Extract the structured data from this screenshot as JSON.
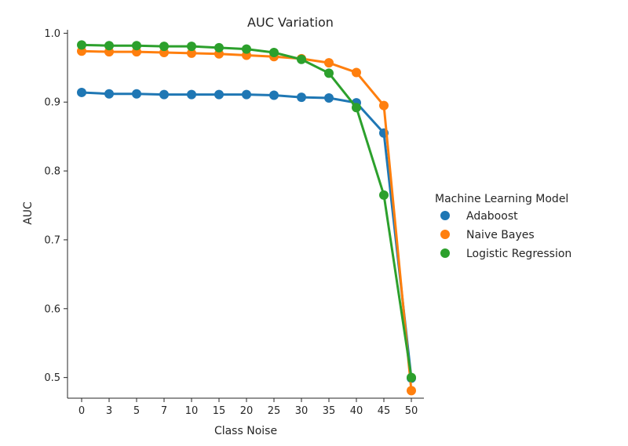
{
  "chart_data": {
    "type": "line",
    "title": "AUC Variation",
    "xlabel": "Class Noise",
    "ylabel": "AUC",
    "categories": [
      "0",
      "3",
      "5",
      "7",
      "10",
      "15",
      "20",
      "25",
      "30",
      "35",
      "40",
      "45",
      "50"
    ],
    "ylim": [
      0.47,
      1.005
    ],
    "yticks": [
      "0.5",
      "0.6",
      "0.7",
      "0.8",
      "0.9",
      "1.0"
    ],
    "grid": false,
    "legend": {
      "title": "Machine Learning Model",
      "placement": "right"
    },
    "series": [
      {
        "name": "Adaboost",
        "color": "#1f77b4",
        "values": [
          0.914,
          0.912,
          0.912,
          0.911,
          0.911,
          0.911,
          0.911,
          0.91,
          0.907,
          0.906,
          0.899,
          0.855,
          0.499
        ]
      },
      {
        "name": "Naive Bayes",
        "color": "#ff7f0e",
        "values": [
          0.974,
          0.973,
          0.973,
          0.972,
          0.971,
          0.97,
          0.968,
          0.966,
          0.963,
          0.957,
          0.943,
          0.895,
          0.481
        ]
      },
      {
        "name": "Logistic Regression",
        "color": "#2ca02c",
        "values": [
          0.983,
          0.982,
          0.982,
          0.981,
          0.981,
          0.979,
          0.977,
          0.972,
          0.962,
          0.942,
          0.892,
          0.765,
          0.5
        ]
      }
    ]
  }
}
